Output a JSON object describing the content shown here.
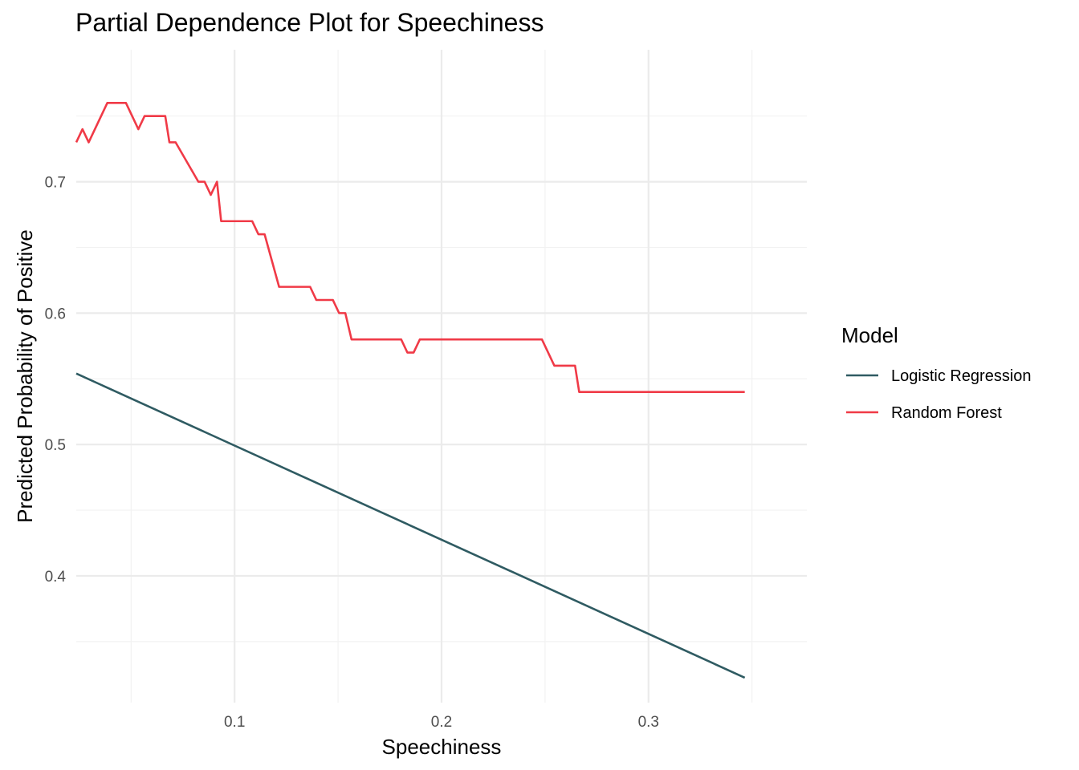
{
  "chart_data": {
    "type": "line",
    "title": "Partial Dependence Plot for Speechiness",
    "xlabel": "Speechiness",
    "ylabel": "Predicted Probability of Positive",
    "xlim": [
      0.0235,
      0.3765
    ],
    "ylim": [
      0.3035,
      0.8005
    ],
    "x_ticks": [
      0.1,
      0.2,
      0.3
    ],
    "x_tick_labels": [
      "0.1",
      "0.2",
      "0.3"
    ],
    "y_ticks": [
      0.4,
      0.5,
      0.6,
      0.7
    ],
    "y_tick_labels": [
      "0.4",
      "0.5",
      "0.6",
      "0.7"
    ],
    "grid": true,
    "legend": {
      "title": "Model",
      "position": "right",
      "entries": [
        "Logistic Regression",
        "Random Forest"
      ]
    },
    "series": [
      {
        "name": "Logistic Regression",
        "color": "#2F5B62",
        "x": [
          0.0235,
          0.3465
        ],
        "y": [
          0.554,
          0.3225
        ]
      },
      {
        "name": "Random Forest",
        "color": "#F03A47",
        "x": [
          0.0235,
          0.0265,
          0.0295,
          0.0385,
          0.0475,
          0.0535,
          0.0565,
          0.0665,
          0.0685,
          0.0715,
          0.0825,
          0.0855,
          0.0885,
          0.0915,
          0.0935,
          0.1085,
          0.1115,
          0.1145,
          0.1215,
          0.1365,
          0.1395,
          0.1475,
          0.1505,
          0.1535,
          0.1565,
          0.1805,
          0.1835,
          0.1865,
          0.1895,
          0.2485,
          0.2545,
          0.2645,
          0.2665,
          0.3465
        ],
        "y": [
          0.73,
          0.74,
          0.73,
          0.76,
          0.76,
          0.74,
          0.75,
          0.75,
          0.73,
          0.73,
          0.7,
          0.7,
          0.69,
          0.7,
          0.67,
          0.67,
          0.66,
          0.66,
          0.62,
          0.62,
          0.61,
          0.61,
          0.6,
          0.6,
          0.58,
          0.58,
          0.57,
          0.57,
          0.58,
          0.58,
          0.56,
          0.56,
          0.54,
          0.54
        ]
      }
    ]
  }
}
